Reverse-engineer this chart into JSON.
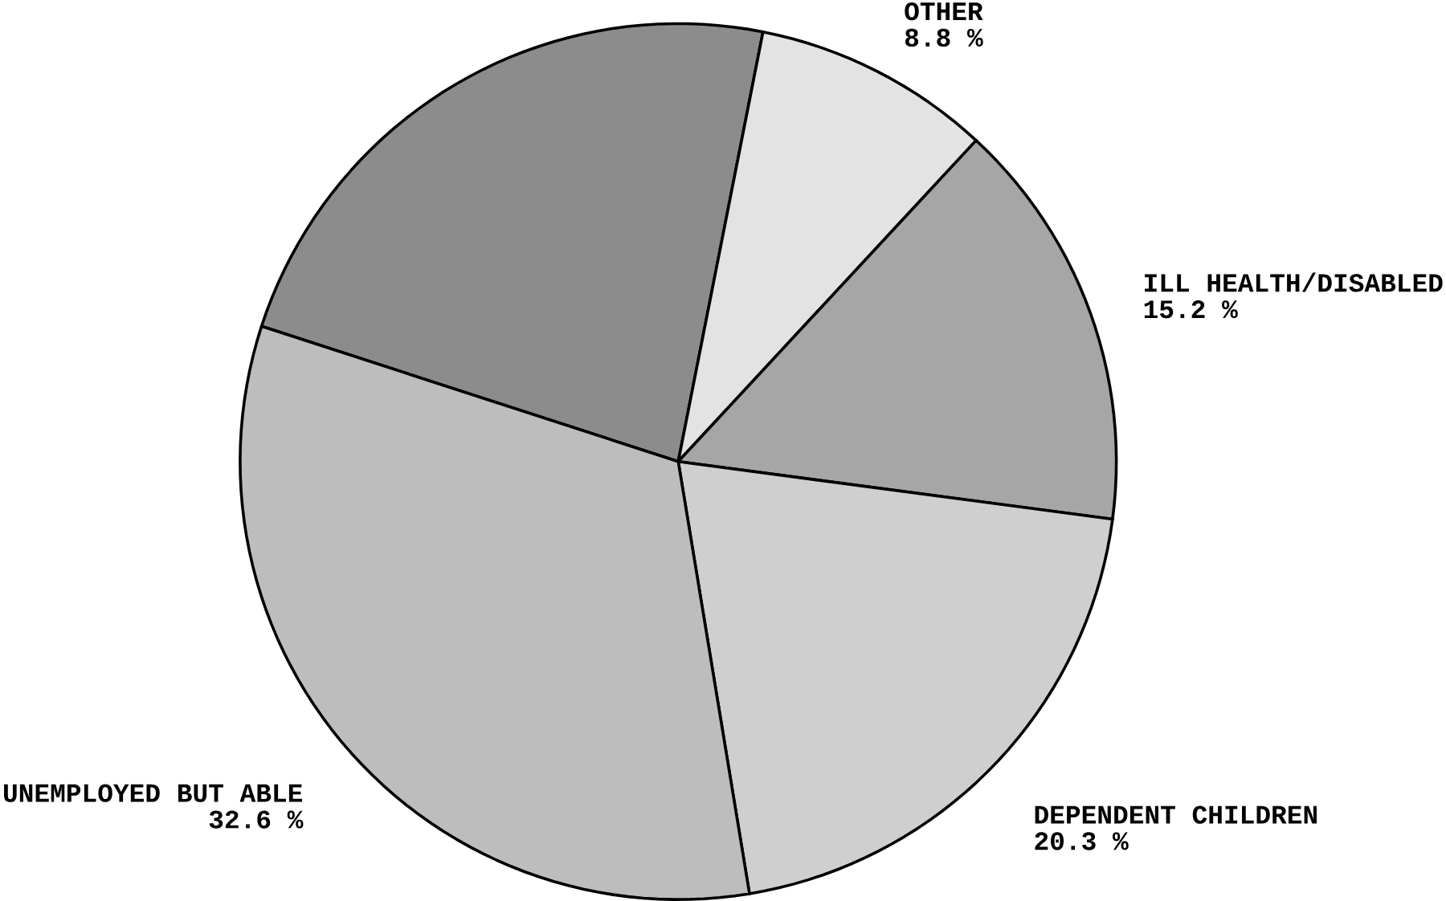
{
  "chart_data": {
    "type": "pie",
    "categories": [
      null,
      "OTHER",
      "ILL HEALTH/DISABLED",
      "DEPENDENT CHILDREN",
      "UNEMPLOYED BUT ABLE"
    ],
    "values": [
      23.1,
      8.8,
      15.2,
      20.3,
      32.6
    ],
    "value_labels": [
      null,
      "8.8 %",
      "15.2 %",
      "20.3 %",
      "32.6 %"
    ],
    "colors": [
      "#8c8c8c",
      "#e3e3e3",
      "#a6a6a6",
      "#cfcfcf",
      "#bdbdbd"
    ]
  }
}
